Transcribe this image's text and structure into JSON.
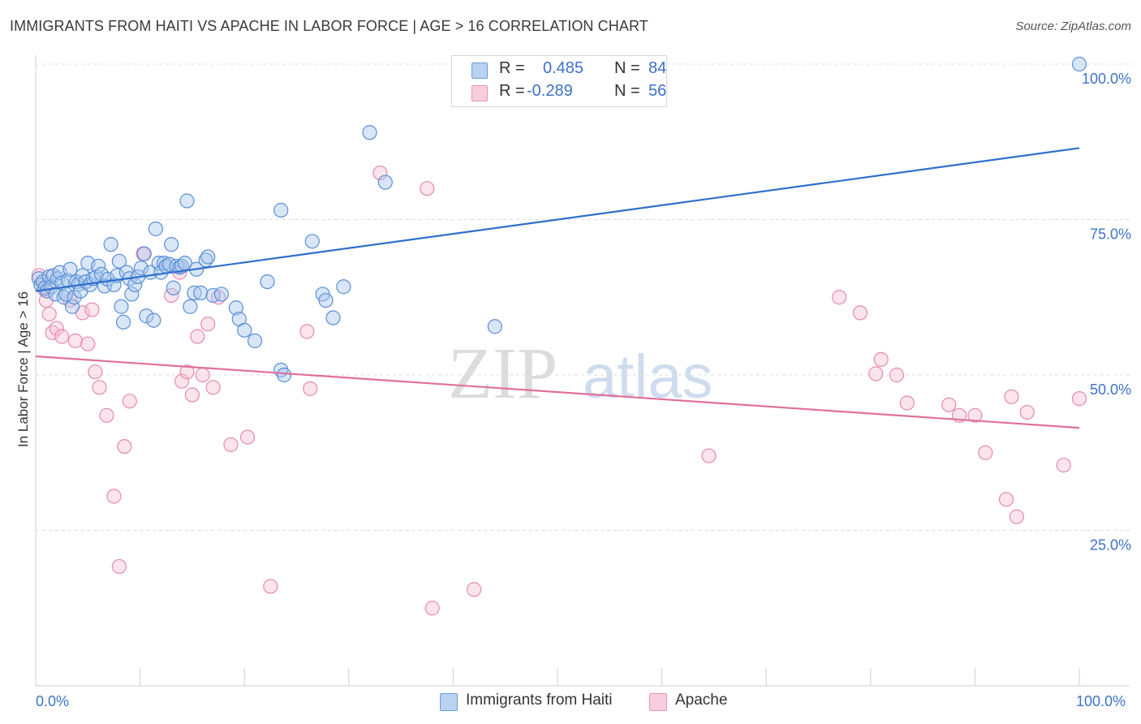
{
  "title": "IMMIGRANTS FROM HAITI VS APACHE IN LABOR FORCE | AGE > 16 CORRELATION CHART",
  "source": "Source: ZipAtlas.com",
  "watermark": {
    "part1": "ZIP",
    "part2": "atlas"
  },
  "colors": {
    "blue_fill": "#a9c8ee",
    "blue_stroke": "#5a8fd6",
    "blue_line": "#2f6fcc",
    "pink_fill": "#f6c4d5",
    "pink_stroke": "#e58ab0",
    "pink_line": "#e0709a",
    "tick_text": "#3d72c8",
    "grid": "#dedede"
  },
  "stats": [
    {
      "r_label": "R =",
      "r_value": "0.485",
      "n_label": "N =",
      "n_value": "84",
      "color": "blue"
    },
    {
      "r_label": "R =",
      "r_value": "-0.289",
      "n_label": "N =",
      "n_value": "56",
      "color": "pink"
    }
  ],
  "chart_data": {
    "type": "scatter",
    "title": "IMMIGRANTS FROM HAITI VS APACHE IN LABOR FORCE | AGE > 16 CORRELATION CHART",
    "xlabel": "",
    "ylabel": "In Labor Force | Age > 16",
    "xlim": [
      0,
      100
    ],
    "ylim": [
      0,
      100
    ],
    "x_tick_labels": [
      "0.0%",
      "100.0%"
    ],
    "y_ticks": [
      25,
      50,
      75,
      100
    ],
    "y_tick_labels": [
      "25.0%",
      "50.0%",
      "75.0%",
      "100.0%"
    ],
    "grid": true,
    "legend_position": "bottom",
    "series": [
      {
        "name": "Immigrants from Haiti",
        "color": "blue",
        "trend": {
          "x": [
            0,
            100
          ],
          "y": [
            63.5,
            86.5
          ]
        },
        "points": [
          [
            0.3,
            65.5
          ],
          [
            0.5,
            64.5
          ],
          [
            0.7,
            65
          ],
          [
            0.9,
            64
          ],
          [
            1.1,
            63.5
          ],
          [
            1.3,
            65.8
          ],
          [
            1.5,
            64.2
          ],
          [
            1.7,
            66
          ],
          [
            1.9,
            63
          ],
          [
            2.1,
            65.5
          ],
          [
            2.3,
            66.5
          ],
          [
            2.5,
            64.8
          ],
          [
            2.7,
            62.5
          ],
          [
            2.9,
            63
          ],
          [
            3.1,
            65.2
          ],
          [
            3.3,
            67
          ],
          [
            3.5,
            61
          ],
          [
            3.7,
            62.5
          ],
          [
            3.9,
            65
          ],
          [
            4.1,
            64.6
          ],
          [
            4.3,
            63.5
          ],
          [
            4.5,
            66
          ],
          [
            4.8,
            65
          ],
          [
            5.0,
            68
          ],
          [
            5.2,
            64.5
          ],
          [
            5.5,
            65.5
          ],
          [
            5.8,
            65.8
          ],
          [
            6.0,
            67.5
          ],
          [
            6.3,
            66.2
          ],
          [
            6.6,
            64.3
          ],
          [
            6.9,
            65.4
          ],
          [
            7.2,
            71
          ],
          [
            7.5,
            64.5
          ],
          [
            7.8,
            66
          ],
          [
            8.0,
            68.3
          ],
          [
            8.2,
            61
          ],
          [
            8.4,
            58.5
          ],
          [
            8.7,
            66.5
          ],
          [
            9.0,
            65.5
          ],
          [
            9.2,
            63
          ],
          [
            9.5,
            64.5
          ],
          [
            9.8,
            65.8
          ],
          [
            10.1,
            67.2
          ],
          [
            10.4,
            69.5
          ],
          [
            10.6,
            59.5
          ],
          [
            11.0,
            66.5
          ],
          [
            11.3,
            58.8
          ],
          [
            11.5,
            73.5
          ],
          [
            11.8,
            68
          ],
          [
            12.0,
            66.5
          ],
          [
            12.3,
            68
          ],
          [
            12.5,
            67.5
          ],
          [
            12.8,
            67.8
          ],
          [
            13.0,
            71
          ],
          [
            13.2,
            64
          ],
          [
            13.5,
            67.5
          ],
          [
            13.8,
            67.3
          ],
          [
            14.0,
            67.5
          ],
          [
            14.3,
            68
          ],
          [
            14.5,
            78
          ],
          [
            14.8,
            61
          ],
          [
            15.2,
            63.2
          ],
          [
            15.4,
            67
          ],
          [
            15.8,
            63.2
          ],
          [
            16.3,
            68.5
          ],
          [
            16.5,
            69
          ],
          [
            17.0,
            62.8
          ],
          [
            17.8,
            63
          ],
          [
            19.2,
            60.8
          ],
          [
            19.5,
            59
          ],
          [
            20.0,
            57.2
          ],
          [
            21.0,
            55.5
          ],
          [
            22.2,
            65
          ],
          [
            23.5,
            50.8
          ],
          [
            23.8,
            50
          ],
          [
            23.5,
            76.5
          ],
          [
            26.5,
            71.5
          ],
          [
            27.5,
            63
          ],
          [
            27.8,
            62
          ],
          [
            28.5,
            59.2
          ],
          [
            29.5,
            64.2
          ],
          [
            32.0,
            89
          ],
          [
            33.5,
            81
          ],
          [
            44.0,
            57.8
          ],
          [
            100,
            100
          ]
        ]
      },
      {
        "name": "Apache",
        "color": "pink",
        "trend": {
          "x": [
            0,
            100
          ],
          "y": [
            53,
            41.5
          ]
        },
        "points": [
          [
            0.3,
            66
          ],
          [
            0.8,
            63.8
          ],
          [
            1.0,
            62
          ],
          [
            1.3,
            59.8
          ],
          [
            1.6,
            56.8
          ],
          [
            2.0,
            57.5
          ],
          [
            2.5,
            56.2
          ],
          [
            3.3,
            62
          ],
          [
            3.8,
            55.5
          ],
          [
            4.5,
            60
          ],
          [
            5.0,
            55
          ],
          [
            5.4,
            60.5
          ],
          [
            5.7,
            50.5
          ],
          [
            6.1,
            48
          ],
          [
            6.8,
            43.5
          ],
          [
            7.5,
            30.5
          ],
          [
            8.0,
            19.2
          ],
          [
            8.5,
            38.5
          ],
          [
            9.0,
            45.8
          ],
          [
            10.3,
            69.5
          ],
          [
            13.0,
            62.8
          ],
          [
            13.8,
            66.5
          ],
          [
            14.0,
            49
          ],
          [
            14.5,
            50.5
          ],
          [
            15.0,
            46.8
          ],
          [
            15.5,
            56.2
          ],
          [
            16.0,
            50
          ],
          [
            16.5,
            58.2
          ],
          [
            17.0,
            48
          ],
          [
            17.5,
            62.5
          ],
          [
            18.7,
            38.8
          ],
          [
            20.3,
            40
          ],
          [
            22.5,
            16
          ],
          [
            26.0,
            57
          ],
          [
            26.3,
            47.8
          ],
          [
            33.0,
            82.5
          ],
          [
            37.5,
            80
          ],
          [
            38.0,
            12.5
          ],
          [
            42.0,
            15.5
          ],
          [
            64.5,
            37
          ],
          [
            77.0,
            62.5
          ],
          [
            79.0,
            60
          ],
          [
            80.5,
            50.2
          ],
          [
            81.0,
            52.5
          ],
          [
            82.5,
            50
          ],
          [
            83.5,
            45.5
          ],
          [
            87.5,
            45.2
          ],
          [
            88.5,
            43.5
          ],
          [
            90.0,
            43.5
          ],
          [
            91.0,
            37.5
          ],
          [
            93.0,
            30
          ],
          [
            93.5,
            46.5
          ],
          [
            94.0,
            27.2
          ],
          [
            95.0,
            44
          ],
          [
            98.5,
            35.5
          ],
          [
            100,
            46.2
          ]
        ]
      }
    ]
  }
}
